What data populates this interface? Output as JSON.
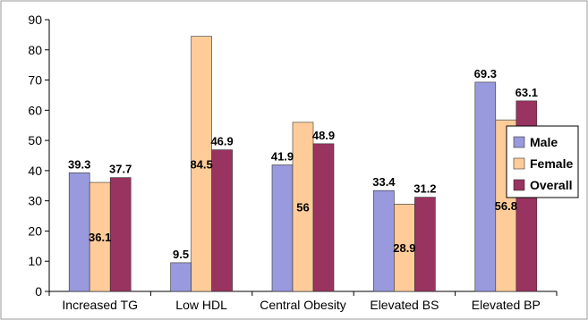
{
  "chart_data": {
    "type": "bar",
    "title": "",
    "xlabel": "",
    "ylabel": "",
    "ylim": [
      0,
      90
    ],
    "yticks": [
      0,
      10,
      20,
      30,
      40,
      50,
      60,
      70,
      80,
      90
    ],
    "grid": false,
    "legend_position": "right",
    "categories": [
      "Increased TG",
      "Low HDL",
      "Central Obesity",
      "Elevated BS",
      "Elevated BP"
    ],
    "series": [
      {
        "name": "Male",
        "color": "#9999dd",
        "values": [
          39.3,
          9.5,
          41.9,
          33.4,
          69.3
        ],
        "labels": [
          "39.3",
          "9.5",
          "41.9",
          "33.4",
          "69.3"
        ]
      },
      {
        "name": "Female",
        "color": "#ffcc99",
        "values": [
          36.1,
          84.5,
          56,
          28.9,
          56.8
        ],
        "labels": [
          "36.1",
          "84.5",
          "56",
          "28.9",
          "56.8"
        ]
      },
      {
        "name": "Overall",
        "color": "#99335f",
        "values": [
          37.7,
          46.9,
          48.9,
          31.2,
          63.1
        ],
        "labels": [
          "37.7",
          "46.9",
          "48.9",
          "31.2",
          "63.1"
        ]
      }
    ]
  }
}
